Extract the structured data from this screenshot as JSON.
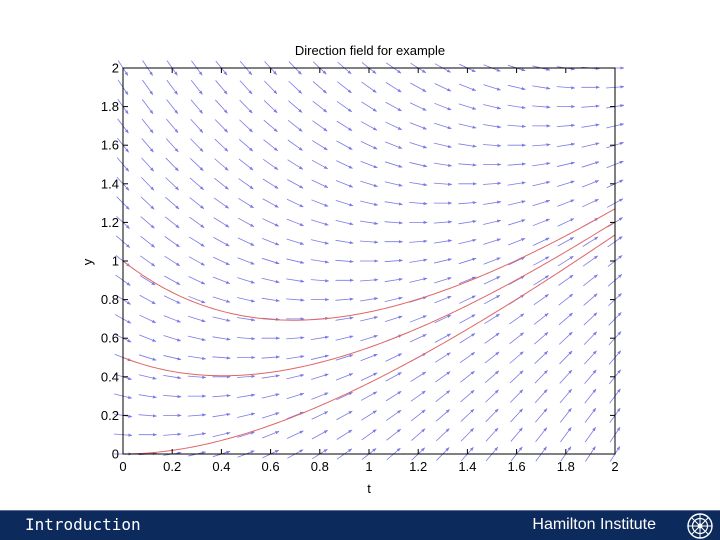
{
  "chart_data": {
    "type": "quiver",
    "title": "Direction field for example",
    "xlabel": "t",
    "ylabel": "y",
    "xlim": [
      0,
      2
    ],
    "ylim": [
      0,
      2
    ],
    "x_ticks": [
      "0",
      "0.2",
      "0.4",
      "0.6",
      "0.8",
      "1",
      "1.2",
      "1.4",
      "1.6",
      "1.8",
      "2"
    ],
    "y_ticks": [
      "0",
      "0.2",
      "0.4",
      "0.6",
      "0.8",
      "1",
      "1.2",
      "1.4",
      "1.6",
      "1.8",
      "2"
    ],
    "grid": false,
    "field": {
      "equation": "dy/dt = t - y",
      "t_values": [
        0,
        0.1,
        0.2,
        0.3,
        0.4,
        0.5,
        0.6,
        0.7,
        0.8,
        0.9,
        1.0,
        1.1,
        1.2,
        1.3,
        1.4,
        1.5,
        1.6,
        1.7,
        1.8,
        1.9,
        2.0
      ],
      "y_values": [
        0,
        0.1,
        0.2,
        0.3,
        0.4,
        0.5,
        0.6,
        0.7,
        0.8,
        0.9,
        1.0,
        1.1,
        1.2,
        1.3,
        1.4,
        1.5,
        1.6,
        1.7,
        1.8,
        1.9,
        2.0
      ],
      "color": "#7a7ae6"
    },
    "series": [
      {
        "y0": 1.0,
        "color": "#e06666"
      },
      {
        "y0": 0.5,
        "color": "#e06666"
      },
      {
        "y0": 0.0,
        "color": "#e06666"
      }
    ]
  },
  "footer": {
    "section": "Introduction",
    "institution": "Hamilton Institute",
    "logo_icon": "hamilton-logo-icon",
    "background": "#0d2a5c"
  }
}
